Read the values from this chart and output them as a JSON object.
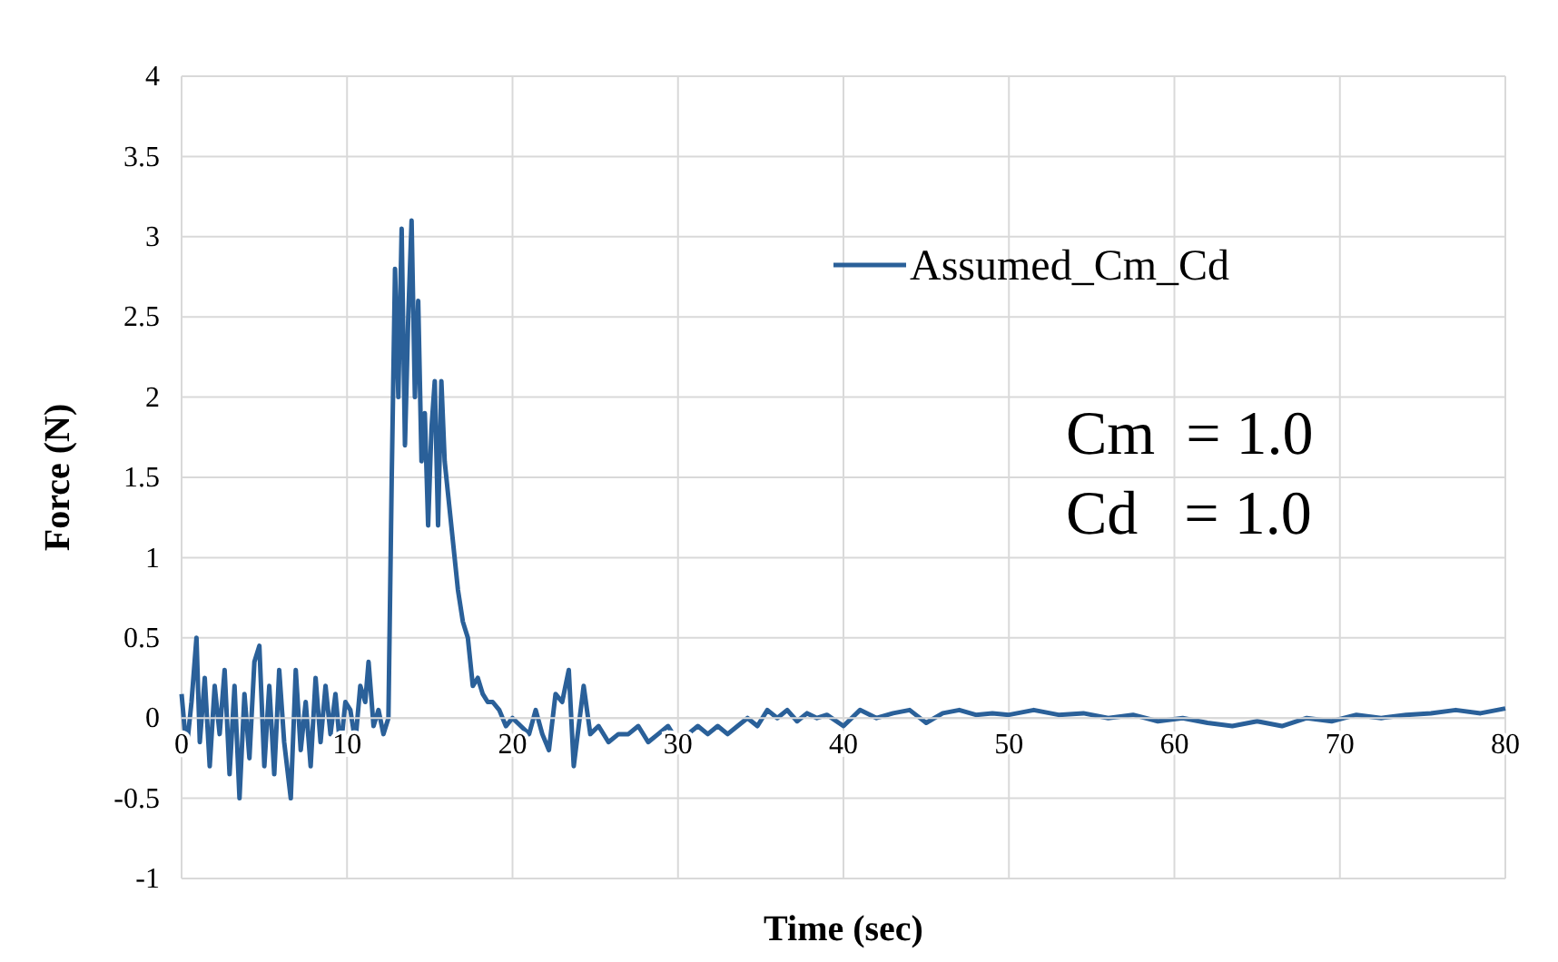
{
  "chart_data": {
    "type": "line",
    "xlabel": "Time (sec)",
    "ylabel": "Force (N)",
    "xlim": [
      0,
      80
    ],
    "ylim": [
      -1,
      4
    ],
    "xticks": [
      0,
      10,
      20,
      30,
      40,
      50,
      60,
      70,
      80
    ],
    "yticks": [
      -1,
      -0.5,
      0,
      0.5,
      1,
      1.5,
      2,
      2.5,
      3,
      3.5,
      4
    ],
    "grid": true,
    "legend": "top right",
    "annotations": [
      "Cm  = 1.0",
      "Cd   = 1.0"
    ],
    "series": [
      {
        "name": "Assumed_Cm_Cd",
        "color": "#2a6099",
        "x": [
          0,
          0.3,
          0.6,
          0.9,
          1.1,
          1.4,
          1.7,
          2,
          2.3,
          2.6,
          2.9,
          3.2,
          3.5,
          3.8,
          4.1,
          4.4,
          4.7,
          5,
          5.3,
          5.6,
          5.9,
          6.2,
          6.6,
          6.9,
          7.2,
          7.5,
          7.8,
          8.1,
          8.4,
          8.7,
          9,
          9.3,
          9.6,
          9.9,
          10.2,
          10.5,
          10.8,
          11.1,
          11.3,
          11.6,
          11.9,
          12.2,
          12.5,
          12.7,
          12.9,
          13.1,
          13.3,
          13.5,
          13.7,
          13.9,
          14.1,
          14.3,
          14.5,
          14.7,
          14.9,
          15.1,
          15.3,
          15.5,
          15.7,
          15.9,
          16.1,
          16.4,
          16.7,
          17,
          17.3,
          17.6,
          17.9,
          18.2,
          18.5,
          18.8,
          19.2,
          19.6,
          20,
          20.5,
          21,
          21.4,
          21.8,
          22.2,
          22.6,
          23,
          23.4,
          23.7,
          24,
          24.3,
          24.7,
          25.2,
          25.8,
          26.4,
          27,
          27.6,
          28.2,
          28.8,
          29.4,
          30,
          30.6,
          31.2,
          31.8,
          32.4,
          33,
          33.6,
          34.2,
          34.8,
          35.4,
          36,
          36.6,
          37.2,
          37.8,
          38.4,
          39,
          40,
          41,
          42,
          43,
          44,
          45,
          46,
          47,
          48,
          49,
          50,
          51.5,
          53,
          54.5,
          56,
          57.5,
          59,
          60.5,
          62,
          63.5,
          65,
          66.5,
          68,
          69.5,
          71,
          72.5,
          74,
          75.5,
          77,
          78.5,
          80
        ],
        "values": [
          0.15,
          -0.2,
          0.1,
          0.5,
          -0.15,
          0.25,
          -0.3,
          0.2,
          -0.1,
          0.3,
          -0.35,
          0.2,
          -0.5,
          0.15,
          -0.25,
          0.35,
          0.45,
          -0.3,
          0.2,
          -0.35,
          0.3,
          -0.15,
          -0.5,
          0.3,
          -0.2,
          0.1,
          -0.3,
          0.25,
          -0.15,
          0.2,
          -0.1,
          0.15,
          -0.2,
          0.1,
          0.05,
          -0.15,
          0.2,
          0.1,
          0.35,
          -0.05,
          0.05,
          -0.1,
          0.0,
          1.5,
          2.8,
          2.0,
          3.05,
          1.7,
          2.5,
          3.1,
          2.0,
          2.6,
          1.6,
          1.9,
          1.2,
          1.8,
          2.1,
          1.2,
          2.1,
          1.6,
          1.4,
          1.1,
          0.8,
          0.6,
          0.5,
          0.2,
          0.25,
          0.15,
          0.1,
          0.1,
          0.05,
          -0.05,
          0.0,
          -0.05,
          -0.1,
          0.05,
          -0.1,
          -0.2,
          0.15,
          0.1,
          0.3,
          -0.3,
          -0.05,
          0.2,
          -0.1,
          -0.05,
          -0.15,
          -0.1,
          -0.1,
          -0.05,
          -0.15,
          -0.1,
          -0.05,
          -0.15,
          -0.1,
          -0.05,
          -0.1,
          -0.05,
          -0.1,
          -0.05,
          0.0,
          -0.05,
          0.05,
          0.0,
          0.05,
          -0.02,
          0.03,
          0.0,
          0.02,
          -0.05,
          0.05,
          0.0,
          0.03,
          0.05,
          -0.03,
          0.03,
          0.05,
          0.02,
          0.03,
          0.02,
          0.05,
          0.02,
          0.03,
          0.0,
          0.02,
          -0.02,
          0.0,
          -0.03,
          -0.05,
          -0.02,
          -0.05,
          0.0,
          -0.02,
          0.02,
          0.0,
          0.02,
          0.03,
          0.05,
          0.03,
          0.06
        ]
      }
    ]
  }
}
